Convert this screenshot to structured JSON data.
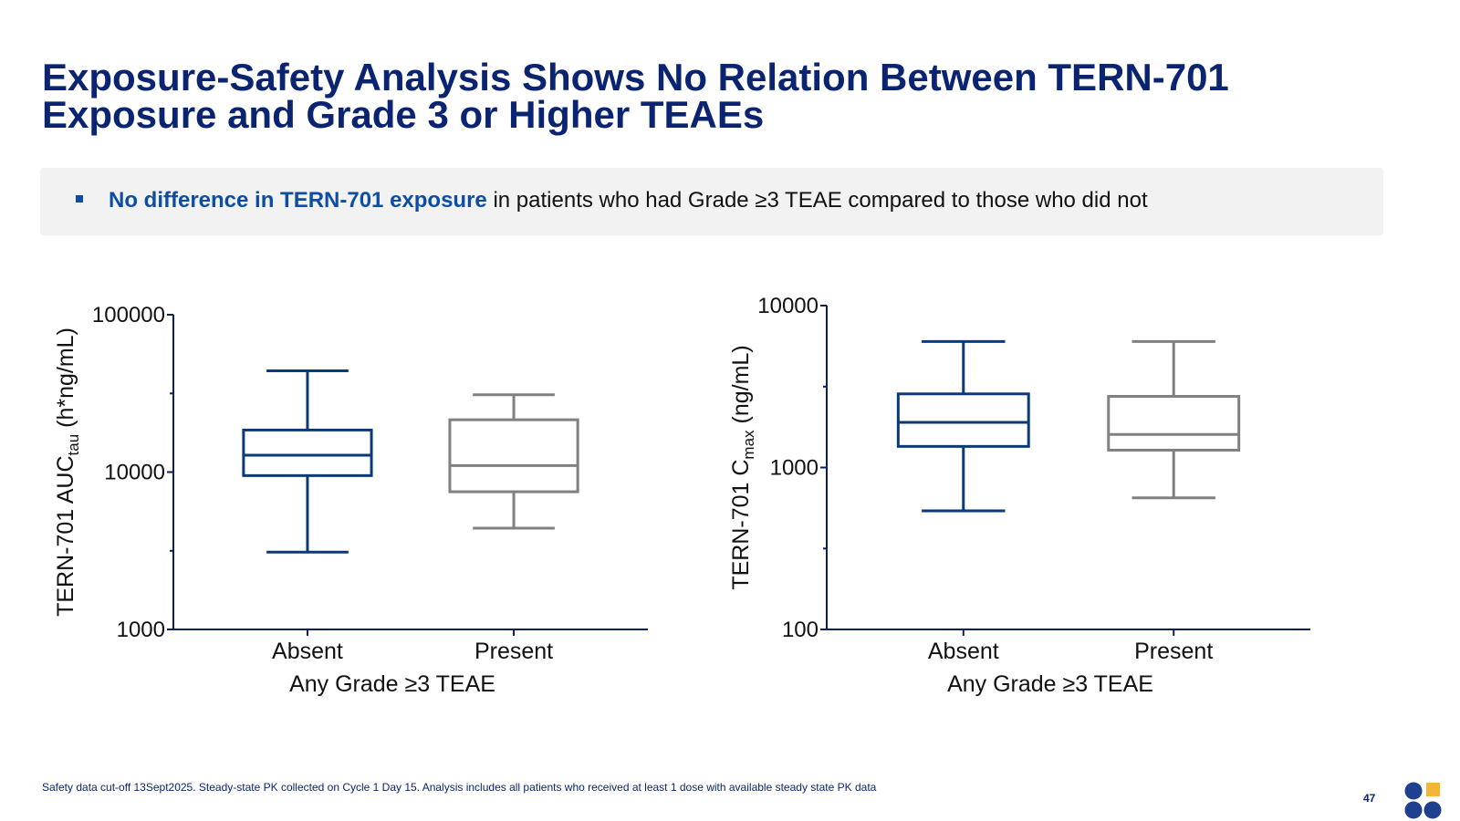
{
  "slide": {
    "title_line1": "Exposure-Safety Analysis Shows No Relation Between TERN-701",
    "title_line2": "Exposure and Grade 3 or Higher TEAEs",
    "bullet_highlight": "No difference in TERN-701 exposure",
    "bullet_rest": " in patients who had Grade ≥3 TEAE compared to those who did not",
    "footnote": "Safety data cut-off 13Sept2025. Steady-state PK collected on Cycle 1 Day 15. Analysis includes all patients who received at least 1 dose with available steady state PK data",
    "page_number": "47"
  },
  "colors": {
    "title": "#0a2472",
    "highlight": "#0d4ea2",
    "absent_box": "#0a3a7a",
    "present_box": "#808080",
    "axis": "#0a1f5c",
    "logo_dot": "#1f3f8f",
    "logo_square": "#f2b535"
  },
  "chart_data": [
    {
      "type": "boxplot",
      "y_scale": "log",
      "ylim": [
        1000,
        100000
      ],
      "yticks": [
        {
          "value": 1000,
          "label": "1000"
        },
        {
          "value": 10000,
          "label": "10000"
        },
        {
          "value": 100000,
          "label": "100000"
        }
      ],
      "ylabel": "TERN-701 AUC",
      "ylabel_sub": "tau",
      "ylabel_suffix": " (h*ng/mL)",
      "xlabel": "Any Grade ≥3 TEAE",
      "categories": [
        "Absent",
        "Present"
      ],
      "boxes": [
        {
          "category": "Absent",
          "min": 3100,
          "q1": 9500,
          "median": 12800,
          "q3": 18500,
          "max": 44000,
          "color": "#0a3a7a"
        },
        {
          "category": "Present",
          "min": 4400,
          "q1": 7500,
          "median": 11000,
          "q3": 21500,
          "max": 31000,
          "color": "#808080"
        }
      ]
    },
    {
      "type": "boxplot",
      "y_scale": "log",
      "ylim": [
        100,
        10000
      ],
      "yticks": [
        {
          "value": 100,
          "label": "100"
        },
        {
          "value": 1000,
          "label": "1000"
        },
        {
          "value": 10000,
          "label": "10000"
        }
      ],
      "ylabel": "TERN-701 C",
      "ylabel_sub": "max",
      "ylabel_suffix": " (ng/mL)",
      "xlabel": "Any Grade ≥3 TEAE",
      "categories": [
        "Absent",
        "Present"
      ],
      "boxes": [
        {
          "category": "Absent",
          "min": 540,
          "q1": 1350,
          "median": 1900,
          "q3": 2850,
          "max": 6000,
          "color": "#0a3a7a"
        },
        {
          "category": "Present",
          "min": 650,
          "q1": 1280,
          "median": 1600,
          "q3": 2750,
          "max": 6000,
          "color": "#808080"
        }
      ]
    }
  ]
}
